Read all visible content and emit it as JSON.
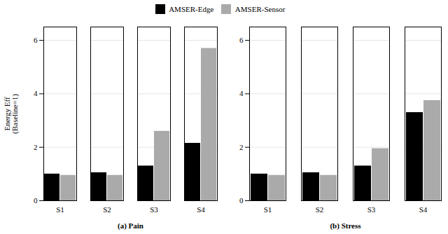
{
  "chart_data": [
    {
      "type": "bar",
      "categories": [
        "S1",
        "S2",
        "S3",
        "S4"
      ],
      "series": [
        {
          "name": "AMSER-Edge",
          "color": "#000000",
          "values": [
            1.0,
            1.05,
            1.3,
            2.15
          ]
        },
        {
          "name": "AMSER-Sensor",
          "color": "#aaaaaa",
          "values": [
            0.95,
            0.95,
            2.6,
            5.7
          ]
        }
      ],
      "ylim": [
        0,
        6.5
      ],
      "yticks": [
        0,
        2,
        4,
        6
      ],
      "ylabel": "Energy Eff\n(Baseline=1)",
      "xlabel": "(a) Pain",
      "grid": true,
      "legend": "top"
    },
    {
      "type": "bar",
      "categories": [
        "S1",
        "S2",
        "S3",
        "S4"
      ],
      "series": [
        {
          "name": "AMSER-Edge",
          "color": "#000000",
          "values": [
            1.0,
            1.05,
            1.3,
            3.3
          ]
        },
        {
          "name": "AMSER-Sensor",
          "color": "#aaaaaa",
          "values": [
            0.95,
            0.95,
            1.95,
            3.75
          ]
        }
      ],
      "ylim": [
        0,
        6.5
      ],
      "yticks": [
        0,
        2,
        4,
        6
      ],
      "xlabel": "(b) Stress",
      "grid": true,
      "legend": "top"
    }
  ]
}
